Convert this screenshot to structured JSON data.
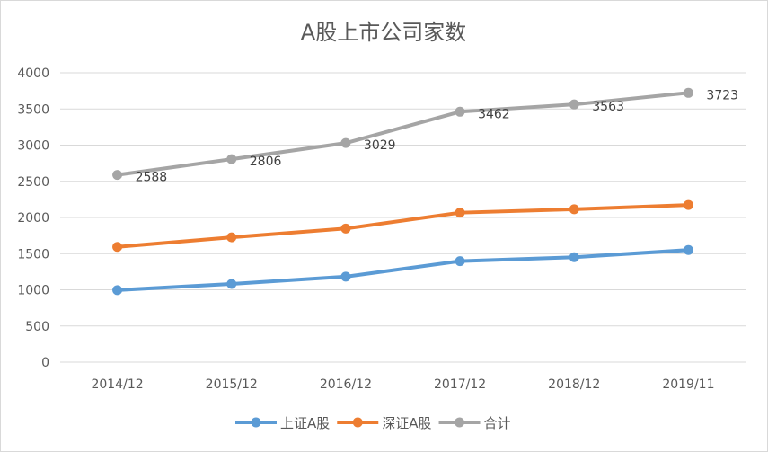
{
  "chart_data": {
    "type": "line",
    "title": "A股上市公司家数",
    "xlabel": "",
    "ylabel": "",
    "categories": [
      "2014/12",
      "2015/12",
      "2016/12",
      "2017/12",
      "2018/12",
      "2019/11"
    ],
    "ylim": [
      0,
      4000
    ],
    "yticks": [
      0,
      500,
      1000,
      1500,
      2000,
      2500,
      3000,
      3500,
      4000
    ],
    "grid": true,
    "legend_position": "bottom",
    "series": [
      {
        "name": "上证A股",
        "color": "#5b9bd5",
        "values": [
          995,
          1081,
          1182,
          1396,
          1450,
          1550
        ],
        "show_labels": false
      },
      {
        "name": "深证A股",
        "color": "#ed7d31",
        "values": [
          1593,
          1725,
          1847,
          2066,
          2113,
          2173
        ],
        "show_labels": false
      },
      {
        "name": "合计",
        "color": "#a5a5a5",
        "values": [
          2588,
          2806,
          3029,
          3462,
          3563,
          3723
        ],
        "show_labels": true
      }
    ]
  }
}
